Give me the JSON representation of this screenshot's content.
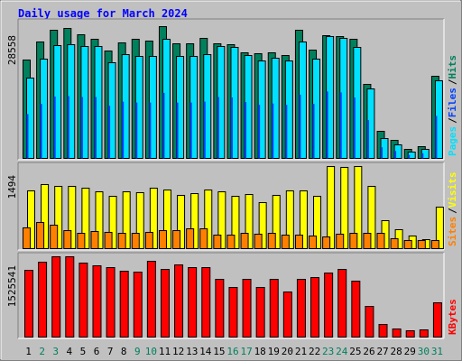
{
  "title": "Daily usage for March 2024",
  "legend_separator": "/",
  "chart_data": [
    {
      "type": "bar",
      "series": [
        {
          "name": "Hits",
          "color": "#00805c",
          "values": [
            21321,
            25233,
            27775,
            28167,
            26797,
            25819,
            23276,
            25037,
            25819,
            25428,
            28558,
            24841,
            24841,
            26015,
            24841,
            24646,
            22885,
            22690,
            22885,
            22299,
            27775,
            23472,
            26602,
            26406,
            25819,
            16039,
            5868,
            3912,
            1956,
            2543,
            17800
          ]
        },
        {
          "name": "Files",
          "color": "#0040ff",
          "values": [
            9600,
            11800,
            13400,
            13500,
            13300,
            13300,
            11400,
            12300,
            12100,
            12100,
            14200,
            12100,
            12100,
            12300,
            13300,
            13200,
            12200,
            11600,
            11900,
            11600,
            13800,
            11800,
            14500,
            14300,
            13200,
            8300,
            2400,
            1600,
            750,
            1100,
            9200
          ]
        },
        {
          "name": "Pages",
          "color": "#00e0ff",
          "values": [
            17409,
            21516,
            24450,
            24646,
            24255,
            24255,
            20734,
            22494,
            22103,
            22103,
            25819,
            22103,
            22103,
            22494,
            24255,
            24059,
            22299,
            21125,
            21712,
            21125,
            25233,
            21516,
            26406,
            26015,
            24059,
            15061,
            4303,
            2934,
            1369,
            1956,
            16822
          ]
        }
      ],
      "ylim": [
        0,
        28558
      ],
      "yticks": [
        28558
      ],
      "legend": "right"
    },
    {
      "type": "bar",
      "series": [
        {
          "name": "Visits",
          "color": "#ffff00",
          "values": [
            1051,
            1166,
            1133,
            1133,
            1100,
            1034,
            952,
            1034,
            1018,
            1100,
            1067,
            969,
            1001,
            1067,
            1034,
            952,
            985,
            837,
            969,
            1051,
            1051,
            952,
            1494,
            1478,
            1494,
            1133,
            509,
            345,
            230,
            164,
            755
          ]
        },
        {
          "name": "Sites",
          "color": "#ff8000",
          "values": [
            378,
            476,
            427,
            328,
            279,
            312,
            296,
            279,
            279,
            296,
            328,
            328,
            361,
            361,
            246,
            246,
            279,
            263,
            279,
            246,
            246,
            230,
            213,
            263,
            279,
            279,
            279,
            181,
            148,
            148,
            148
          ]
        }
      ],
      "ylim": [
        0,
        1494
      ],
      "yticks": [
        1494
      ],
      "legend": "right"
    },
    {
      "type": "bar",
      "categories": [
        "1",
        "2",
        "3",
        "4",
        "5",
        "6",
        "7",
        "8",
        "9",
        "10",
        "11",
        "12",
        "13",
        "14",
        "15",
        "16",
        "17",
        "18",
        "19",
        "20",
        "21",
        "22",
        "23",
        "24",
        "25",
        "26",
        "27",
        "28",
        "29",
        "30",
        "31"
      ],
      "category_colors": [
        "#000000",
        "#00805c",
        "#00805c",
        "#000000",
        "#000000",
        "#000000",
        "#000000",
        "#000000",
        "#00805c",
        "#00805c",
        "#000000",
        "#000000",
        "#000000",
        "#000000",
        "#000000",
        "#00805c",
        "#00805c",
        "#000000",
        "#000000",
        "#000000",
        "#000000",
        "#000000",
        "#00805c",
        "#00805c",
        "#000000",
        "#000000",
        "#000000",
        "#000000",
        "#000000",
        "#00805c",
        "#00805c"
      ],
      "series": [
        {
          "name": "KBytes",
          "color": "#ff0000",
          "values": [
            1268428,
            1422695,
            1525541,
            1525541,
            1405554,
            1354132,
            1319851,
            1251287,
            1234146,
            1439836,
            1285569,
            1371273,
            1319851,
            1319851,
            1097017,
            942749,
            1097017,
            942749,
            1097017,
            857046,
            1097017,
            1131299,
            1216442,
            1285569,
            1062737,
            582791,
            239973,
            154268,
            119986,
            137126,
            651353
          ]
        }
      ],
      "ylim": [
        0,
        1525541
      ],
      "yticks": [
        1525541
      ],
      "legend": "right"
    }
  ]
}
